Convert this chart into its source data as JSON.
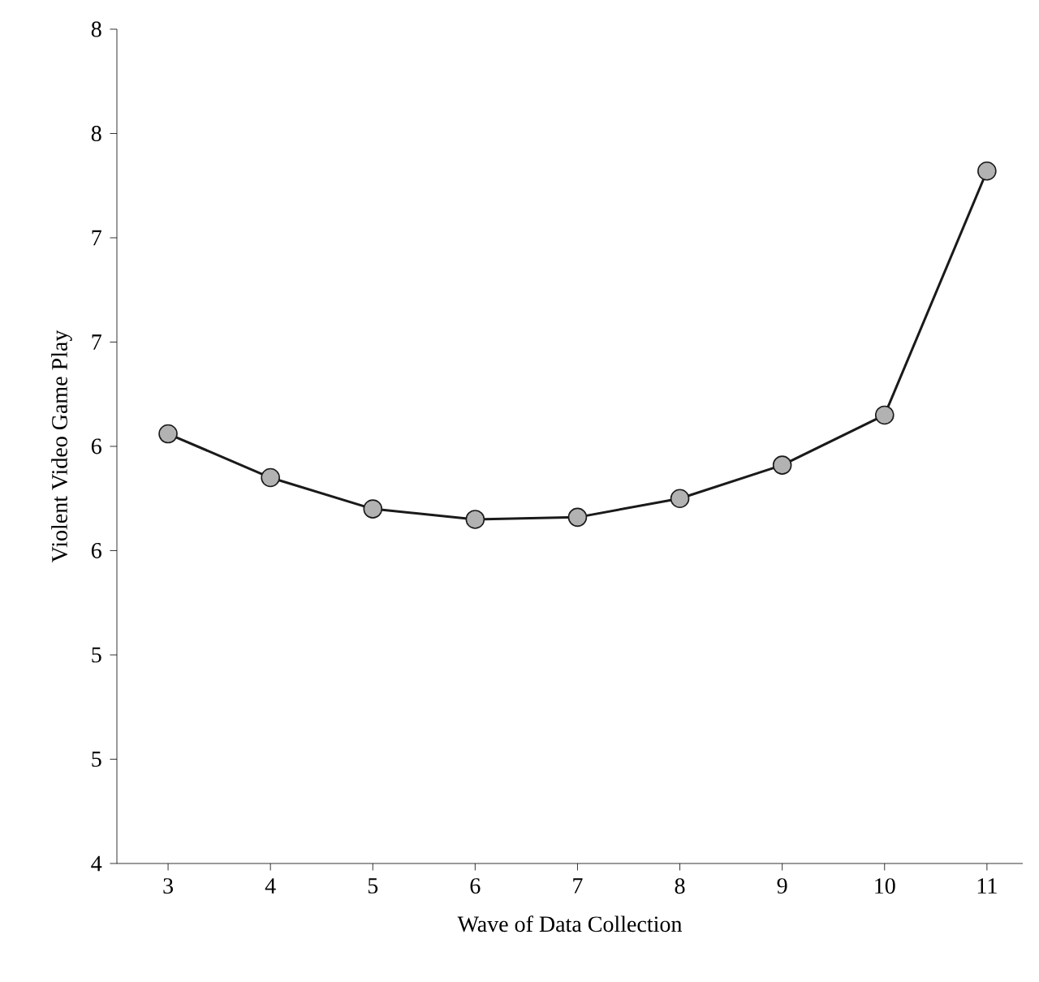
{
  "chart_data": {
    "type": "line",
    "xlabel": "Wave of Data Collection",
    "ylabel": "Violent Video Game Play",
    "x": [
      3,
      4,
      5,
      6,
      7,
      8,
      9,
      10,
      11
    ],
    "series": [
      {
        "color": "#1a1a1a",
        "values": [
          6.06,
          5.85,
          5.7,
          5.65,
          5.66,
          5.75,
          5.91,
          6.15,
          7.32
        ]
      }
    ],
    "marker": "circle",
    "line_style": "solid",
    "grid": false,
    "xlim": [
      2.5,
      11.35
    ],
    "ylim": [
      4,
      8
    ],
    "xticks": [
      3,
      4,
      5,
      6,
      7,
      8,
      9,
      10,
      11
    ],
    "yticks": [
      4,
      {
        "value": 4.5,
        "label": "5"
      },
      5,
      {
        "value": 5.5,
        "label": "6"
      },
      6,
      {
        "value": 6.5,
        "label": "7"
      },
      7,
      {
        "value": 7.5,
        "label": "8"
      },
      8
    ]
  }
}
